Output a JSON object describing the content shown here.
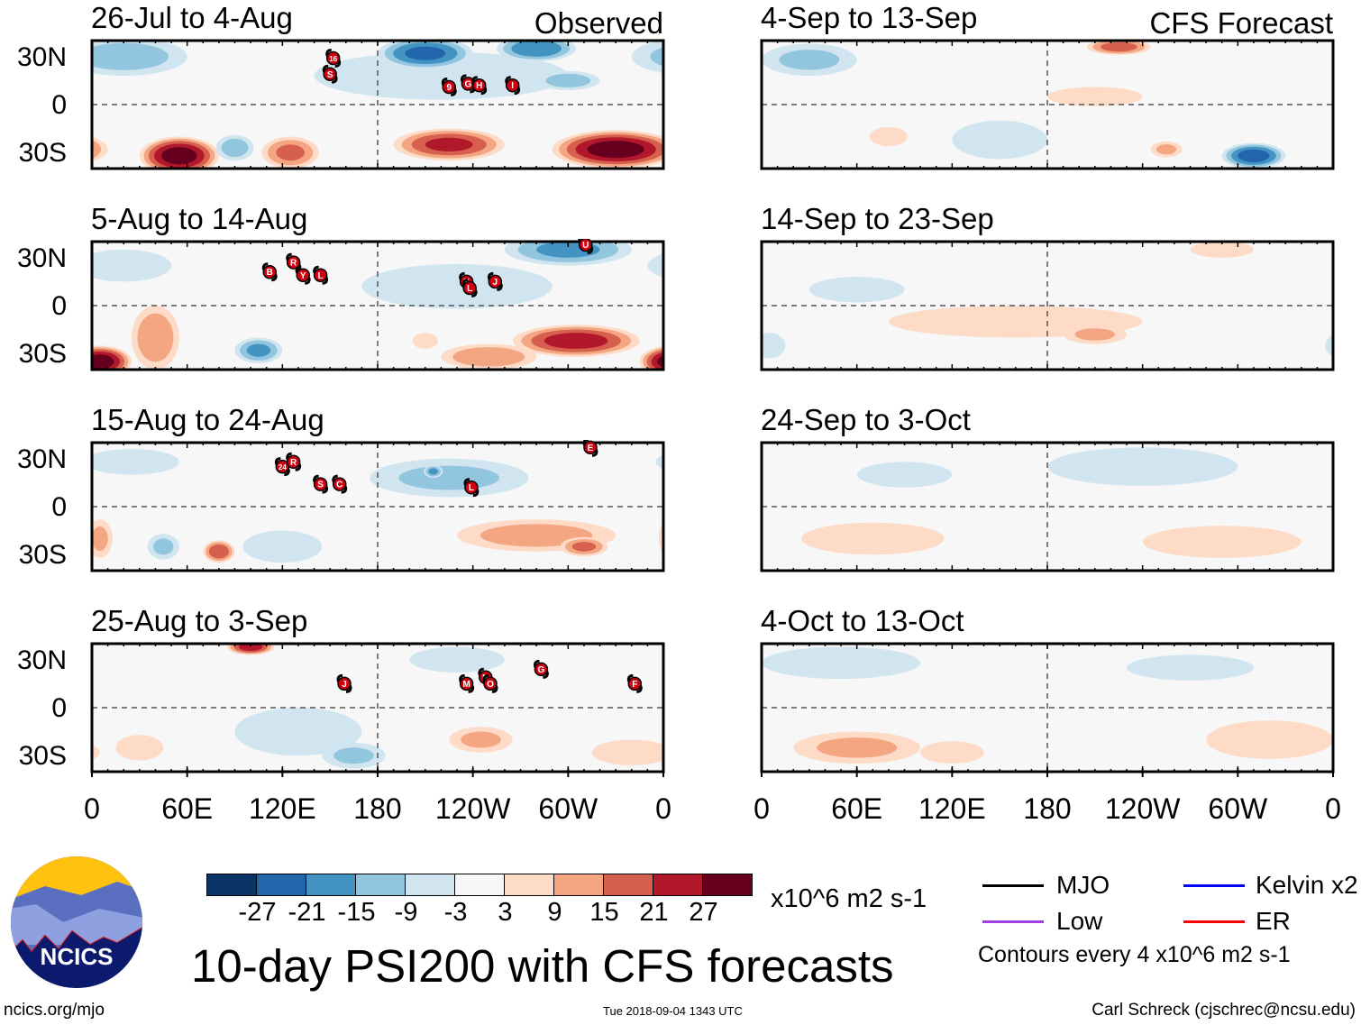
{
  "header": {
    "observed_label": "Observed",
    "forecast_label": "CFS Forecast"
  },
  "lat_labels": [
    "30N",
    "0",
    "30S"
  ],
  "lon_labels": [
    "0",
    "60E",
    "120E",
    "180",
    "120W",
    "60W",
    "0"
  ],
  "panels": {
    "observed": [
      {
        "title": "26-Jul to 4-Aug",
        "blobs": [
          [
            20,
            30,
            40,
            12,
            -12
          ],
          [
            220,
            18,
            80,
            15,
            -8
          ],
          [
            210,
            32,
            30,
            10,
            -22
          ],
          [
            280,
            35,
            25,
            8,
            -20
          ],
          [
            300,
            15,
            20,
            6,
            -12
          ],
          [
            55,
            -32,
            25,
            12,
            30
          ],
          [
            125,
            -30,
            18,
            10,
            16
          ],
          [
            225,
            -25,
            35,
            10,
            22
          ],
          [
            330,
            -28,
            40,
            12,
            30
          ],
          [
            90,
            -27,
            12,
            8,
            -12
          ]
        ],
        "storms": [
          [
            "16",
            152,
            29
          ],
          [
            "S",
            150,
            19
          ],
          [
            "9",
            225,
            11
          ],
          [
            "G",
            237,
            13
          ],
          [
            "H",
            244,
            12
          ],
          [
            "I",
            265,
            12
          ]
        ]
      },
      {
        "title": "5-Aug to 14-Aug",
        "blobs": [
          [
            20,
            25,
            30,
            10,
            -8
          ],
          [
            230,
            12,
            60,
            14,
            -8
          ],
          [
            300,
            35,
            40,
            10,
            -16
          ],
          [
            5,
            -35,
            20,
            10,
            30
          ],
          [
            40,
            -20,
            15,
            20,
            14
          ],
          [
            105,
            -28,
            15,
            8,
            -16
          ],
          [
            305,
            -22,
            40,
            10,
            24
          ],
          [
            250,
            -32,
            30,
            8,
            14
          ],
          [
            210,
            -22,
            8,
            5,
            8
          ]
        ],
        "storms": [
          [
            "B",
            112,
            21
          ],
          [
            "R",
            127,
            27
          ],
          [
            "Y",
            133,
            19
          ],
          [
            "L",
            144,
            19
          ],
          [
            "K",
            236,
            15
          ],
          [
            "L",
            238,
            11
          ],
          [
            "J",
            254,
            15
          ],
          [
            "U",
            311,
            38
          ]
        ]
      },
      {
        "title": "15-Aug to 24-Aug",
        "blobs": [
          [
            25,
            28,
            30,
            8,
            -5
          ],
          [
            225,
            18,
            50,
            12,
            -10
          ],
          [
            215,
            22,
            6,
            4,
            -16
          ],
          [
            120,
            -25,
            25,
            10,
            -8
          ],
          [
            80,
            -28,
            10,
            7,
            20
          ],
          [
            45,
            -25,
            10,
            8,
            -10
          ],
          [
            5,
            -20,
            8,
            12,
            10
          ],
          [
            280,
            -18,
            50,
            10,
            12
          ],
          [
            310,
            -25,
            15,
            6,
            16
          ]
        ],
        "storms": [
          [
            "24",
            120,
            25
          ],
          [
            "R",
            127,
            28
          ],
          [
            "S",
            144,
            14
          ],
          [
            "C",
            156,
            14
          ],
          [
            "L",
            239,
            12
          ],
          [
            "E",
            314,
            37
          ]
        ]
      },
      {
        "title": "25-Aug to 3-Sep",
        "blobs": [
          [
            100,
            38,
            15,
            5,
            24
          ],
          [
            130,
            -15,
            40,
            15,
            -8
          ],
          [
            230,
            30,
            30,
            8,
            -8
          ],
          [
            245,
            -20,
            20,
            8,
            10
          ],
          [
            165,
            -30,
            20,
            8,
            -10
          ],
          [
            340,
            -28,
            25,
            8,
            8
          ],
          [
            30,
            -25,
            15,
            8,
            6
          ]
        ],
        "storms": [
          [
            "J",
            159,
            15
          ],
          [
            "M",
            236,
            15
          ],
          [
            "N",
            248,
            19
          ],
          [
            "O",
            251,
            15
          ],
          [
            "G",
            283,
            24
          ],
          [
            "F",
            342,
            15
          ]
        ]
      }
    ],
    "forecast": [
      {
        "title": "4-Sep to 13-Sep",
        "blobs": [
          [
            30,
            28,
            30,
            10,
            -10
          ],
          [
            225,
            36,
            20,
            5,
            18
          ],
          [
            310,
            -32,
            20,
            8,
            -24
          ],
          [
            150,
            -22,
            30,
            12,
            -6
          ],
          [
            80,
            -20,
            12,
            6,
            8
          ],
          [
            255,
            -28,
            10,
            5,
            10
          ],
          [
            210,
            5,
            30,
            6,
            5
          ]
        ]
      },
      {
        "title": "14-Sep to 23-Sep",
        "blobs": [
          [
            160,
            -10,
            80,
            10,
            5
          ],
          [
            210,
            -18,
            20,
            6,
            10
          ],
          [
            290,
            35,
            20,
            5,
            8
          ],
          [
            60,
            10,
            30,
            8,
            -5
          ],
          [
            5,
            -25,
            10,
            8,
            -6
          ]
        ]
      },
      {
        "title": "24-Sep to 3-Oct",
        "blobs": [
          [
            90,
            20,
            30,
            8,
            -4
          ],
          [
            240,
            25,
            60,
            12,
            -6
          ],
          [
            70,
            -20,
            45,
            10,
            6
          ],
          [
            290,
            -22,
            50,
            10,
            8
          ]
        ]
      },
      {
        "title": "4-Oct to 13-Oct",
        "blobs": [
          [
            50,
            28,
            50,
            10,
            -8
          ],
          [
            270,
            25,
            40,
            8,
            -5
          ],
          [
            60,
            -25,
            40,
            10,
            10
          ],
          [
            120,
            -28,
            20,
            7,
            8
          ],
          [
            320,
            -20,
            40,
            12,
            5
          ]
        ]
      }
    ]
  },
  "colorbar": {
    "colors": [
      "#0b3366",
      "#2166ac",
      "#4393c3",
      "#92c5de",
      "#d1e5f0",
      "#f7f7f7",
      "#fddbc7",
      "#f4a582",
      "#d6604d",
      "#b2182b",
      "#67001f"
    ],
    "levels": [
      -27,
      -21,
      -15,
      -9,
      -3,
      3,
      9,
      15,
      21,
      27
    ],
    "labels": [
      "-27",
      "-21",
      "-15",
      "-9",
      "-3",
      "3",
      "9",
      "15",
      "21",
      "27"
    ],
    "units": "x10^6 m2 s-1"
  },
  "legend": {
    "items": [
      {
        "label": "MJO",
        "color": "#000000"
      },
      {
        "label": "Kelvin x2",
        "color": "#0000ff"
      },
      {
        "label": "Low",
        "color": "#a040e0"
      },
      {
        "label": "ER",
        "color": "#ff0000"
      }
    ],
    "contours": "Contours every 4 x10^6 m2 s-1"
  },
  "logo": {
    "text": "NCICS"
  },
  "title": "10-day PSI200 with CFS forecasts",
  "footer": {
    "url": "ncics.org/mjo",
    "timestamp": "Tue 2018-09-04 1343 UTC",
    "credit": "Carl Schreck (cjschrec@ncsu.edu)"
  }
}
